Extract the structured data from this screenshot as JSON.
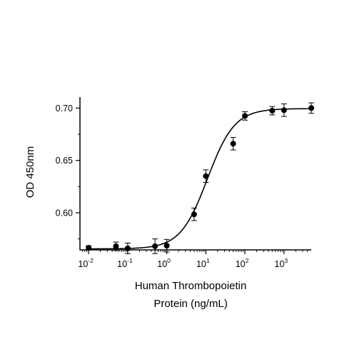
{
  "chart_data": {
    "type": "scatter",
    "xlabel_lines": [
      "Human Thrombopoietin",
      "Protein (ng/mL)"
    ],
    "ylabel": "OD 450nm",
    "xscale": "log",
    "xlim": [
      0.006,
      5000
    ],
    "ylim": [
      0.5645,
      0.7105
    ],
    "grid": false,
    "legend": "none",
    "x_ticks": [
      0.01,
      0.1,
      1,
      10,
      100,
      1000
    ],
    "x_tick_labels": [
      {
        "base": "10",
        "exp": "-2"
      },
      {
        "base": "10",
        "exp": "-1"
      },
      {
        "base": "10",
        "exp": "0"
      },
      {
        "base": "10",
        "exp": "1"
      },
      {
        "base": "10",
        "exp": "2"
      },
      {
        "base": "10",
        "exp": "3"
      }
    ],
    "y_ticks": [
      0.6,
      0.65,
      0.7
    ],
    "y_tick_labels": [
      "0.60",
      "0.65",
      "0.70"
    ],
    "series": [
      {
        "marker": "filled-circle",
        "color": "#000000",
        "points": [
          {
            "x": 0.01,
            "y": 0.5665,
            "err": 0.002
          },
          {
            "x": 0.05,
            "y": 0.568,
            "err": 0.004
          },
          {
            "x": 0.1,
            "y": 0.566,
            "err": 0.005
          },
          {
            "x": 0.5,
            "y": 0.568,
            "err": 0.007
          },
          {
            "x": 1,
            "y": 0.5685,
            "err": 0.006
          },
          {
            "x": 5,
            "y": 0.5985,
            "err": 0.006
          },
          {
            "x": 10,
            "y": 0.635,
            "err": 0.006
          },
          {
            "x": 50,
            "y": 0.666,
            "err": 0.006
          },
          {
            "x": 100,
            "y": 0.6925,
            "err": 0.004
          },
          {
            "x": 500,
            "y": 0.6975,
            "err": 0.004
          },
          {
            "x": 1000,
            "y": 0.698,
            "err": 0.006
          },
          {
            "x": 5000,
            "y": 0.7,
            "err": 0.005
          }
        ]
      }
    ],
    "fit_curve": {
      "type": "4PL",
      "bottom": 0.5655,
      "top": 0.6995,
      "ec50": 11,
      "hill": 1.25,
      "color": "#000000"
    }
  }
}
